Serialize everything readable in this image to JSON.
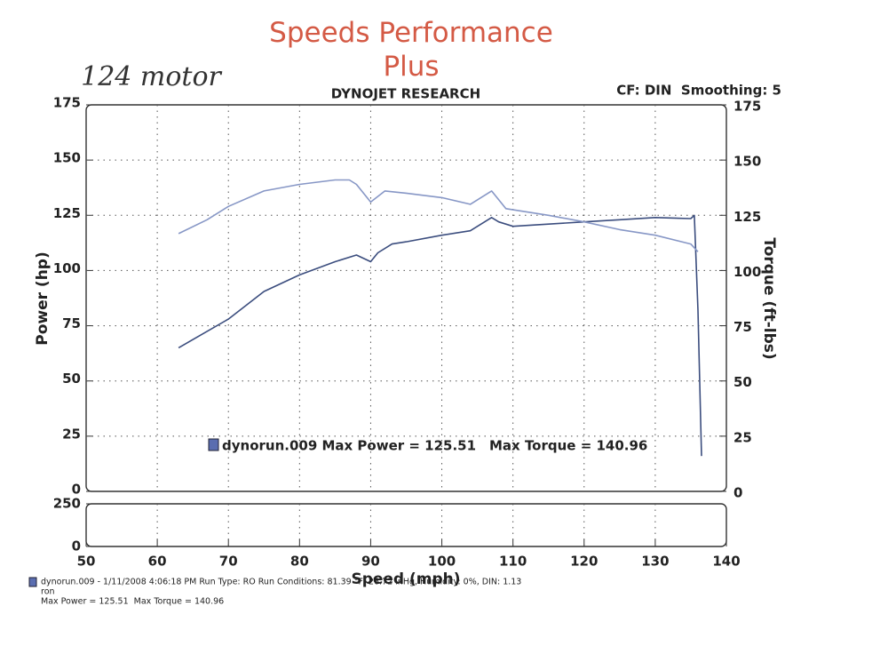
{
  "chart_data": {
    "type": "line",
    "title": "Speeds Performance Plus",
    "note": "124 motor",
    "subtitle": "DYNOJET RESEARCH",
    "settings_label": "CF: DIN  Smoothing: 5",
    "xlabel": "Speed (mph)",
    "ylabel": "Power (hp)",
    "y2label": "Torque (ft-lbs)",
    "xlim": [
      50,
      140
    ],
    "xticks": [
      50,
      60,
      70,
      80,
      90,
      100,
      110,
      120,
      130,
      140
    ],
    "ylim": [
      0,
      175
    ],
    "yticks": [
      0,
      25,
      50,
      75,
      100,
      125,
      150,
      175
    ],
    "y2lim": [
      0,
      175
    ],
    "y2ticks": [
      0,
      25,
      50,
      75,
      100,
      125,
      150,
      175
    ],
    "lower_ylim": [
      0,
      250
    ],
    "lower_yticks": [
      0,
      250
    ],
    "grid": true,
    "series": [
      {
        "name": "Power",
        "color": "#3b4d7e",
        "x": [
          63,
          70,
          75,
          80,
          85,
          88,
          90,
          91,
          93,
          95,
          100,
          104,
          107,
          108,
          110,
          115,
          120,
          125,
          130,
          135,
          135.5,
          136,
          136.5
        ],
        "values": [
          65,
          78,
          90.5,
          98,
          104,
          107,
          104,
          108,
          112,
          113,
          116,
          118,
          124,
          122,
          120,
          121,
          122,
          123,
          124,
          123.5,
          125,
          82,
          16
        ]
      },
      {
        "name": "Torque",
        "color": "#8797c6",
        "axis": "y2",
        "x": [
          63,
          67,
          70,
          75,
          80,
          85,
          87,
          88,
          90,
          92,
          95,
          100,
          104,
          107,
          109,
          115,
          120,
          125,
          130,
          135,
          136
        ],
        "values": [
          116.7,
          123,
          129,
          136,
          139,
          141,
          141,
          139,
          131,
          136,
          135,
          133,
          130,
          136,
          128,
          125,
          122,
          118.5,
          116,
          112,
          108.5
        ]
      }
    ],
    "legend_run": "dynorun.009 Max Power = 125.51",
    "legend_torque": "Max Torque = 140.96",
    "footer": [
      "dynorun.009 - 1/11/2008 4:06:18 PM  Run Type: RO  Run Conditions: 81.39 °F, 26.72 inHg, Humidity: 0%, DIN: 1.13",
      "ron",
      "Max Power = 125.51  Max Torque = 140.96"
    ]
  }
}
